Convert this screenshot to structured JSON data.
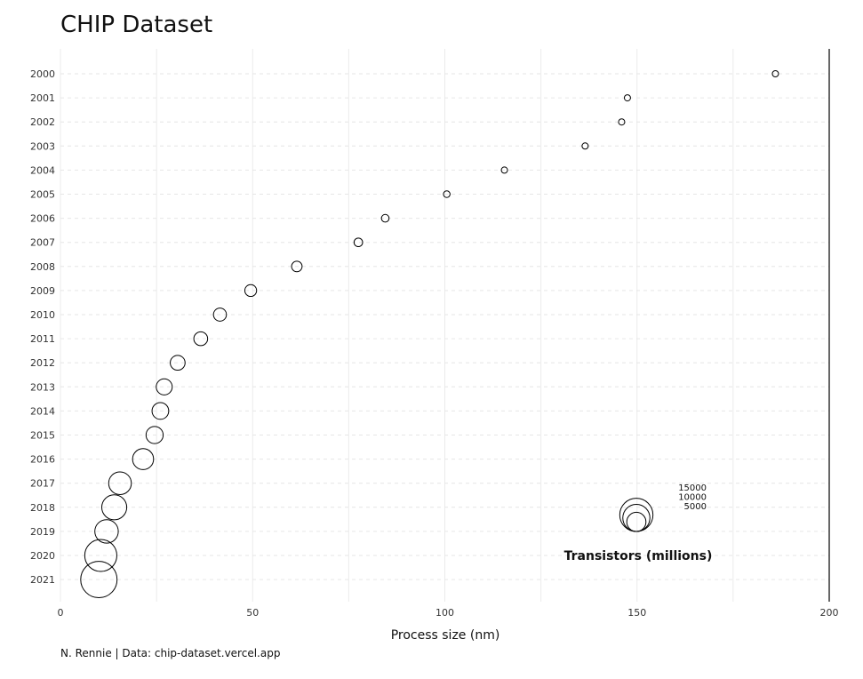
{
  "chart_data": {
    "type": "scatter",
    "title": "CHIP Dataset",
    "xlabel": "Process size (nm)",
    "ylabel": "",
    "caption": "N. Rennie | Data: chip-dataset.vercel.app",
    "xlim": [
      0,
      200
    ],
    "x_ticks": [
      0,
      50,
      100,
      150,
      200
    ],
    "categories": [
      "2000",
      "2001",
      "2002",
      "2003",
      "2004",
      "2005",
      "2006",
      "2007",
      "2008",
      "2009",
      "2010",
      "2011",
      "2012",
      "2013",
      "2014",
      "2015",
      "2016",
      "2017",
      "2018",
      "2019",
      "2020",
      "2021"
    ],
    "x": [
      186,
      147.5,
      146,
      136.5,
      115.5,
      100.5,
      84.5,
      77.5,
      61.5,
      49.5,
      41.5,
      36.5,
      30.5,
      27,
      26,
      24.5,
      21.5,
      15.5,
      14,
      12,
      10.5,
      10
    ],
    "size": [
      50,
      150,
      150,
      300,
      450,
      600,
      800,
      1000,
      1500,
      1900,
      2300,
      2600,
      3000,
      3500,
      3800,
      4000,
      6000,
      7000,
      8500,
      7500,
      14000,
      18000
    ],
    "size_legend": {
      "title": "Transistors (millions)",
      "values": [
        15000,
        10000,
        5000
      ],
      "labels": [
        "15000",
        "10000",
        "5000"
      ]
    },
    "grid": true,
    "legend_position": "inside-bottom-right"
  }
}
